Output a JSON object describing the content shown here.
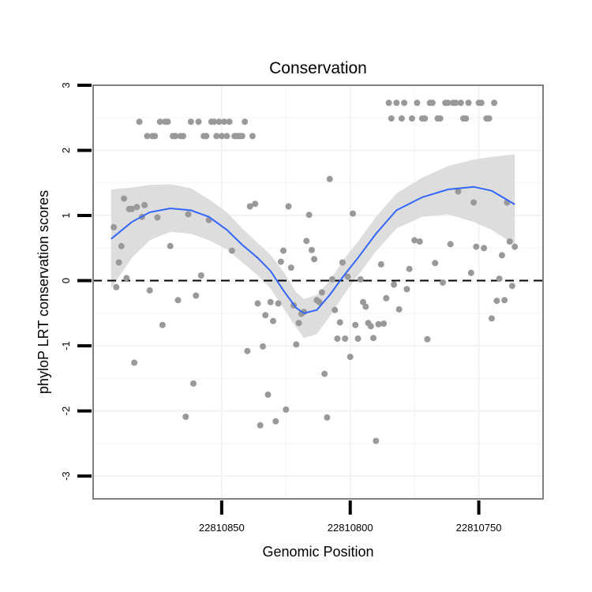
{
  "chart_data": {
    "type": "scatter",
    "title": "Conservation",
    "xlabel": "Genomic Position",
    "ylabel": "phyloP LRT conservation scores",
    "x_reversed": true,
    "xlim": [
      22810900,
      22810725
    ],
    "ylim": [
      -3.35,
      3.0
    ],
    "x_ticks": [
      22810850,
      22810800,
      22810750
    ],
    "x_tick_labels": [
      "22810850",
      "22810800",
      "22810750"
    ],
    "y_ticks": [
      3,
      2,
      1,
      0,
      -1,
      -2,
      -3
    ],
    "y_tick_labels": [
      "3",
      "2",
      "1",
      "0",
      "-1",
      "-2",
      "-3"
    ],
    "grid": true,
    "reference_line": {
      "y": 0,
      "style": "dashed"
    },
    "colors": {
      "points": "#999999",
      "smooth": "#3366ff",
      "band": "#d9d9d9",
      "panel_border": "#808080",
      "grid": "#f2f2f2"
    },
    "points": [
      [
        22810892,
        0.82
      ],
      [
        22810891,
        -0.1
      ],
      [
        22810890,
        0.28
      ],
      [
        22810889,
        0.53
      ],
      [
        22810888,
        1.26
      ],
      [
        22810887,
        0.04
      ],
      [
        22810886,
        1.1
      ],
      [
        22810885,
        1.1
      ],
      [
        22810884,
        -1.26
      ],
      [
        22810883,
        1.13
      ],
      [
        22810882,
        2.44
      ],
      [
        22810881,
        0.98
      ],
      [
        22810880,
        1.16
      ],
      [
        22810879,
        2.22
      ],
      [
        22810878,
        -0.15
      ],
      [
        22810877,
        2.22
      ],
      [
        22810876,
        2.22
      ],
      [
        22810875,
        0.97
      ],
      [
        22810874,
        2.44
      ],
      [
        22810873,
        -0.68
      ],
      [
        22810872,
        2.44
      ],
      [
        22810871,
        2.44
      ],
      [
        22810870,
        0.53
      ],
      [
        22810869,
        2.22
      ],
      [
        22810868,
        2.22
      ],
      [
        22810867,
        -0.3
      ],
      [
        22810866,
        2.22
      ],
      [
        22810865,
        2.22
      ],
      [
        22810864,
        -2.09
      ],
      [
        22810863,
        1.02
      ],
      [
        22810862,
        2.44
      ],
      [
        22810861,
        -1.58
      ],
      [
        22810860,
        -0.23
      ],
      [
        22810859,
        2.44
      ],
      [
        22810858,
        0.08
      ],
      [
        22810857,
        2.22
      ],
      [
        22810856,
        2.22
      ],
      [
        22810855,
        0.93
      ],
      [
        22810854,
        2.44
      ],
      [
        22810853,
        2.44
      ],
      [
        22810852,
        2.22
      ],
      [
        22810851,
        2.44
      ],
      [
        22810850,
        2.22
      ],
      [
        22810849,
        2.44
      ],
      [
        22810848,
        2.22
      ],
      [
        22810847,
        2.44
      ],
      [
        22810846,
        0.46
      ],
      [
        22810845,
        2.22
      ],
      [
        22810844,
        2.22
      ],
      [
        22810843,
        2.22
      ],
      [
        22810842,
        2.22
      ],
      [
        22810841,
        2.44
      ],
      [
        22810840,
        -1.08
      ],
      [
        22810839,
        1.14
      ],
      [
        22810838,
        2.22
      ],
      [
        22810837,
        1.18
      ],
      [
        22810836,
        -0.35
      ],
      [
        22810835,
        -2.22
      ],
      [
        22810834,
        -1.01
      ],
      [
        22810833,
        -0.53
      ],
      [
        22810832,
        -1.75
      ],
      [
        22810831,
        -0.33
      ],
      [
        22810830,
        -0.62
      ],
      [
        22810829,
        -2.16
      ],
      [
        22810828,
        -0.35
      ],
      [
        22810827,
        0.29
      ],
      [
        22810826,
        0.46
      ],
      [
        22810825,
        -1.98
      ],
      [
        22810824,
        1.14
      ],
      [
        22810823,
        0.2
      ],
      [
        22810822,
        -0.38
      ],
      [
        22810821,
        -0.98
      ],
      [
        22810820,
        -0.65
      ],
      [
        22810819,
        -0.51
      ],
      [
        22810818,
        -0.48
      ],
      [
        22810817,
        0.61
      ],
      [
        22810816,
        1.01
      ],
      [
        22810815,
        0.47
      ],
      [
        22810814,
        0.33
      ],
      [
        22810813,
        -0.3
      ],
      [
        22810812,
        -0.33
      ],
      [
        22810811,
        -0.18
      ],
      [
        22810810,
        -1.43
      ],
      [
        22810809,
        -2.1
      ],
      [
        22810808,
        1.56
      ],
      [
        22810807,
        0.02
      ],
      [
        22810806,
        -0.45
      ],
      [
        22810805,
        -0.89
      ],
      [
        22810804,
        -0.64
      ],
      [
        22810803,
        0.28
      ],
      [
        22810802,
        -0.89
      ],
      [
        22810801,
        0.06
      ],
      [
        22810800,
        -1.17
      ],
      [
        22810799,
        1.03
      ],
      [
        22810798,
        -0.68
      ],
      [
        22810797,
        -0.89
      ],
      [
        22810796,
        0.02
      ],
      [
        22810795,
        -0.33
      ],
      [
        22810794,
        -0.4
      ],
      [
        22810793,
        -0.65
      ],
      [
        22810792,
        -0.7
      ],
      [
        22810791,
        -0.88
      ],
      [
        22810790,
        -2.46
      ],
      [
        22810789,
        -0.67
      ],
      [
        22810788,
        0.25
      ],
      [
        22810787,
        -0.66
      ],
      [
        22810786,
        -0.27
      ],
      [
        22810785,
        2.73
      ],
      [
        22810784,
        2.49
      ],
      [
        22810783,
        -0.06
      ],
      [
        22810782,
        2.73
      ],
      [
        22810781,
        -0.44
      ],
      [
        22810780,
        2.49
      ],
      [
        22810779,
        2.73
      ],
      [
        22810778,
        -0.13
      ],
      [
        22810777,
        0.18
      ],
      [
        22810776,
        2.49
      ],
      [
        22810775,
        0.62
      ],
      [
        22810774,
        2.73
      ],
      [
        22810773,
        0.6
      ],
      [
        22810772,
        2.49
      ],
      [
        22810771,
        2.49
      ],
      [
        22810770,
        -0.9
      ],
      [
        22810769,
        2.73
      ],
      [
        22810768,
        2.73
      ],
      [
        22810767,
        0.27
      ],
      [
        22810766,
        2.49
      ],
      [
        22810765,
        2.49
      ],
      [
        22810764,
        -0.03
      ],
      [
        22810763,
        2.73
      ],
      [
        22810762,
        2.73
      ],
      [
        22810761,
        0.56
      ],
      [
        22810760,
        2.73
      ],
      [
        22810759,
        2.73
      ],
      [
        22810758,
        1.37
      ],
      [
        22810757,
        2.73
      ],
      [
        22810756,
        2.49
      ],
      [
        22810755,
        2.49
      ],
      [
        22810754,
        2.73
      ],
      [
        22810753,
        0.12
      ],
      [
        22810752,
        1.2
      ],
      [
        22810751,
        0.52
      ],
      [
        22810750,
        2.73
      ],
      [
        22810749,
        2.73
      ],
      [
        22810748,
        0.5
      ],
      [
        22810747,
        2.49
      ],
      [
        22810746,
        2.49
      ],
      [
        22810745,
        -0.58
      ],
      [
        22810744,
        2.73
      ],
      [
        22810743,
        -0.31
      ],
      [
        22810742,
        0.03
      ],
      [
        22810741,
        0.39
      ],
      [
        22810740,
        -0.3
      ],
      [
        22810739,
        1.2
      ],
      [
        22810738,
        0.6
      ],
      [
        22810737,
        -0.08
      ],
      [
        22810736,
        0.52
      ]
    ],
    "smooth": [
      [
        22810893,
        0.64
      ],
      [
        22810885,
        0.9
      ],
      [
        22810878,
        1.05
      ],
      [
        22810870,
        1.11
      ],
      [
        22810862,
        1.08
      ],
      [
        22810855,
        0.98
      ],
      [
        22810848,
        0.78
      ],
      [
        22810842,
        0.55
      ],
      [
        22810836,
        0.35
      ],
      [
        22810831,
        0.15
      ],
      [
        22810826,
        -0.15
      ],
      [
        22810821,
        -0.42
      ],
      [
        22810818,
        -0.5
      ],
      [
        22810813,
        -0.45
      ],
      [
        22810808,
        -0.22
      ],
      [
        22810803,
        0.05
      ],
      [
        22810797,
        0.35
      ],
      [
        22810790,
        0.72
      ],
      [
        22810782,
        1.08
      ],
      [
        22810772,
        1.28
      ],
      [
        22810762,
        1.4
      ],
      [
        22810752,
        1.44
      ],
      [
        22810745,
        1.38
      ],
      [
        22810736,
        1.17
      ]
    ],
    "band_upper": [
      [
        22810893,
        1.4
      ],
      [
        22810885,
        1.43
      ],
      [
        22810878,
        1.47
      ],
      [
        22810870,
        1.48
      ],
      [
        22810862,
        1.42
      ],
      [
        22810855,
        1.25
      ],
      [
        22810848,
        1.05
      ],
      [
        22810842,
        0.8
      ],
      [
        22810836,
        0.58
      ],
      [
        22810831,
        0.4
      ],
      [
        22810826,
        0.14
      ],
      [
        22810821,
        -0.18
      ],
      [
        22810818,
        -0.28
      ],
      [
        22810813,
        -0.22
      ],
      [
        22810808,
        0.0
      ],
      [
        22810803,
        0.3
      ],
      [
        22810797,
        0.6
      ],
      [
        22810790,
        0.98
      ],
      [
        22810782,
        1.34
      ],
      [
        22810772,
        1.58
      ],
      [
        22810762,
        1.76
      ],
      [
        22810752,
        1.86
      ],
      [
        22810745,
        1.9
      ],
      [
        22810736,
        1.94
      ]
    ],
    "band_lower": [
      [
        22810893,
        -0.12
      ],
      [
        22810885,
        0.35
      ],
      [
        22810878,
        0.62
      ],
      [
        22810870,
        0.75
      ],
      [
        22810862,
        0.72
      ],
      [
        22810855,
        0.62
      ],
      [
        22810848,
        0.48
      ],
      [
        22810842,
        0.28
      ],
      [
        22810836,
        0.08
      ],
      [
        22810831,
        -0.12
      ],
      [
        22810826,
        -0.42
      ],
      [
        22810821,
        -0.72
      ],
      [
        22810818,
        -0.88
      ],
      [
        22810813,
        -0.82
      ],
      [
        22810808,
        -0.55
      ],
      [
        22810803,
        -0.25
      ],
      [
        22810797,
        0.08
      ],
      [
        22810790,
        0.45
      ],
      [
        22810782,
        0.8
      ],
      [
        22810772,
        0.98
      ],
      [
        22810762,
        1.02
      ],
      [
        22810752,
        0.9
      ],
      [
        22810745,
        0.78
      ],
      [
        22810736,
        0.55
      ]
    ]
  }
}
